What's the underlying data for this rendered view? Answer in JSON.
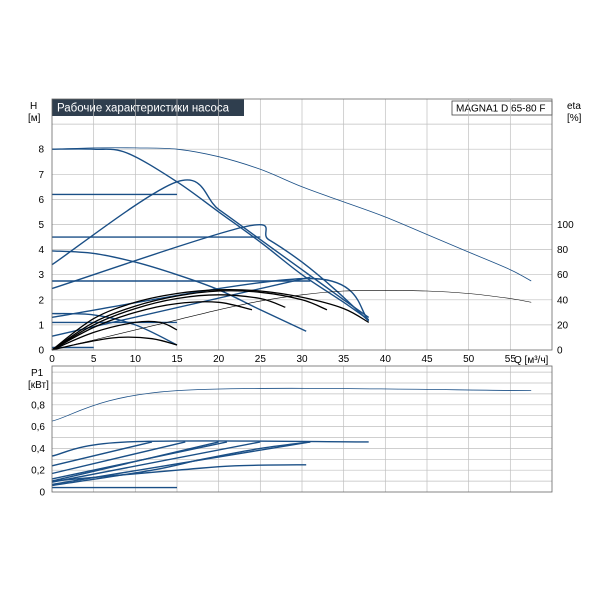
{
  "title": "Рабочие характеристики насоса",
  "model": "MAGNA1 D 65-80 F",
  "colors": {
    "title_bg": "#2f3e4e",
    "title_fg": "#ffffff",
    "grid": "#bfbfbf",
    "curve": "#1a4f86",
    "eff": "#000000"
  },
  "labels": {
    "h_axis": "H",
    "h_unit": "[м]",
    "eta_axis": "eta",
    "eta_unit": "[%]",
    "q_axis": "Q [м³/ч]",
    "p_axis": "P1",
    "p_unit": "[кВт]"
  },
  "chart_data": [
    {
      "type": "line",
      "name": "head",
      "xlim": [
        0,
        60
      ],
      "ylim": [
        0,
        9
      ],
      "x_ticks": [
        0,
        5,
        10,
        15,
        20,
        25,
        30,
        35,
        40,
        45,
        50,
        55
      ],
      "y_ticks": [
        0,
        1,
        2,
        3,
        4,
        5,
        6,
        7,
        8
      ],
      "right_ticks": [
        0,
        20,
        40,
        60,
        80,
        100
      ],
      "right_range": [
        0,
        100
      ],
      "grid": true,
      "series": [
        {
          "style": "main",
          "points": [
            [
              0,
              8.0
            ],
            [
              5,
              8.05
            ],
            [
              10,
              8.05
            ],
            [
              15,
              8.0
            ],
            [
              20,
              7.7
            ],
            [
              25,
              7.2
            ],
            [
              30,
              6.5
            ],
            [
              35,
              5.9
            ],
            [
              40,
              5.3
            ],
            [
              45,
              4.6
            ],
            [
              50,
              3.9
            ],
            [
              55,
              3.2
            ],
            [
              57.5,
              2.75
            ]
          ]
        },
        {
          "style": "curve",
          "points": [
            [
              0,
              8.0
            ],
            [
              5,
              8.0
            ],
            [
              9,
              7.85
            ],
            [
              15,
              6.7
            ],
            [
              20,
              5.5
            ],
            [
              25,
              4.3
            ],
            [
              30,
              3.0
            ],
            [
              35,
              1.9
            ],
            [
              38,
              1.2
            ]
          ]
        },
        {
          "style": "curve",
          "points": [
            [
              0,
              6.2
            ],
            [
              15,
              6.2
            ]
          ]
        },
        {
          "style": "curve",
          "points": [
            [
              0,
              4.5
            ],
            [
              25,
              4.5
            ]
          ]
        },
        {
          "style": "curve",
          "points": [
            [
              0,
              3.95
            ],
            [
              5,
              3.85
            ],
            [
              10,
              3.5
            ],
            [
              15,
              3.0
            ],
            [
              20,
              2.4
            ],
            [
              25,
              1.6
            ],
            [
              30.5,
              0.75
            ]
          ]
        },
        {
          "style": "curve",
          "points": [
            [
              0,
              2.75
            ],
            [
              31,
              2.75
            ]
          ]
        },
        {
          "style": "curve",
          "points": [
            [
              0,
              1.45
            ],
            [
              5,
              1.4
            ],
            [
              10,
              1.0
            ],
            [
              15,
              0.2
            ]
          ]
        },
        {
          "style": "curve",
          "points": [
            [
              0,
              1.1
            ],
            [
              15,
              1.1
            ]
          ]
        },
        {
          "style": "curve",
          "points": [
            [
              0,
              3.4
            ],
            [
              15,
              6.7
            ],
            [
              20,
              5.6
            ],
            [
              25,
              4.4
            ],
            [
              30,
              3.2
            ],
            [
              35,
              2.0
            ],
            [
              38,
              1.3
            ]
          ]
        },
        {
          "style": "curve",
          "points": [
            [
              0,
              2.45
            ],
            [
              23,
              4.9
            ],
            [
              26,
              4.4
            ],
            [
              30,
              3.5
            ],
            [
              34,
              2.4
            ],
            [
              38,
              1.15
            ]
          ]
        },
        {
          "style": "curve",
          "points": [
            [
              0,
              1.3
            ],
            [
              31,
              2.85
            ],
            [
              38,
              1.2
            ]
          ]
        },
        {
          "style": "curve",
          "points": [
            [
              0,
              0.55
            ],
            [
              31,
              2.9
            ]
          ]
        },
        {
          "style": "curve",
          "points": [
            [
              0,
              0.1
            ],
            [
              5,
              0.1
            ]
          ]
        }
      ],
      "efficiency": [
        {
          "style": "eff-thin",
          "points": [
            [
              0,
              0
            ],
            [
              5,
              8
            ],
            [
              10,
              16
            ],
            [
              15,
              24
            ],
            [
              20,
              32
            ],
            [
              25,
              39
            ],
            [
              30,
              44
            ],
            [
              35,
              47
            ],
            [
              40,
              47.5
            ],
            [
              45,
              47
            ],
            [
              50,
              45
            ],
            [
              55,
              41
            ],
            [
              57.5,
              38
            ]
          ]
        },
        {
          "style": "eff",
          "points": [
            [
              0,
              0
            ],
            [
              5,
              25
            ],
            [
              10,
              38
            ],
            [
              15,
              45
            ],
            [
              20,
              48
            ],
            [
              25,
              47
            ],
            [
              30,
              42
            ],
            [
              35,
              33
            ],
            [
              38,
              22
            ]
          ]
        },
        {
          "style": "eff",
          "points": [
            [
              0,
              0
            ],
            [
              5,
              22
            ],
            [
              10,
              35
            ],
            [
              15,
              43
            ],
            [
              20,
              47
            ],
            [
              25,
              46
            ],
            [
              30,
              40
            ],
            [
              33,
              32
            ]
          ]
        },
        {
          "style": "eff",
          "points": [
            [
              0,
              0
            ],
            [
              5,
              20
            ],
            [
              10,
              33
            ],
            [
              15,
              41
            ],
            [
              20,
              44
            ],
            [
              25,
              41
            ],
            [
              28,
              34
            ]
          ]
        },
        {
          "style": "eff",
          "points": [
            [
              0,
              0
            ],
            [
              5,
              18
            ],
            [
              10,
              30
            ],
            [
              15,
              37
            ],
            [
              20,
              38
            ],
            [
              24,
              32
            ]
          ]
        },
        {
          "style": "eff",
          "points": [
            [
              0,
              0
            ],
            [
              5,
              14
            ],
            [
              10,
              22
            ],
            [
              13,
              22
            ],
            [
              15,
              16
            ]
          ]
        },
        {
          "style": "eff",
          "points": [
            [
              0,
              0
            ],
            [
              4,
              6
            ],
            [
              8,
              10
            ],
            [
              12,
              9
            ],
            [
              15,
              4
            ]
          ]
        }
      ]
    },
    {
      "type": "line",
      "name": "power",
      "xlim": [
        0,
        60
      ],
      "ylim": [
        0,
        1.0
      ],
      "y_ticks": [
        0,
        0.2,
        0.4,
        0.6,
        0.8
      ],
      "y_tick_labels": [
        "0",
        "0,2",
        "0,4",
        "0,6",
        "0,8"
      ],
      "grid": true,
      "series": [
        {
          "style": "main",
          "points": [
            [
              0,
              0.65
            ],
            [
              15,
              0.93
            ],
            [
              57.5,
              0.93
            ]
          ]
        },
        {
          "style": "curve",
          "points": [
            [
              0,
              0.33
            ],
            [
              9,
              0.46
            ],
            [
              38,
              0.46
            ]
          ]
        },
        {
          "style": "curve",
          "points": [
            [
              0,
              0.24
            ],
            [
              12,
              0.46
            ]
          ]
        },
        {
          "style": "curve",
          "points": [
            [
              0,
              0.17
            ],
            [
              16,
              0.46
            ]
          ]
        },
        {
          "style": "curve",
          "points": [
            [
              0,
              0.12
            ],
            [
              21,
              0.46
            ]
          ]
        },
        {
          "style": "curve",
          "points": [
            [
              0,
              0.09
            ],
            [
              25,
              0.46
            ]
          ]
        },
        {
          "style": "curve",
          "points": [
            [
              0,
              0.07
            ],
            [
              31,
              0.46
            ]
          ]
        },
        {
          "style": "curve",
          "points": [
            [
              0,
              0.1
            ],
            [
              15,
              0.2
            ],
            [
              22,
              0.24
            ],
            [
              30.5,
              0.25
            ]
          ]
        },
        {
          "style": "curve",
          "points": [
            [
              0,
              0.04
            ],
            [
              15,
              0.04
            ]
          ]
        },
        {
          "style": "curve",
          "points": [
            [
              0,
              0.1
            ],
            [
              20,
              0.46
            ]
          ]
        },
        {
          "style": "curve",
          "points": [
            [
              0,
              0.06
            ],
            [
              12,
              0.2
            ],
            [
              18,
              0.3
            ],
            [
              25,
              0.4
            ],
            [
              31,
              0.46
            ]
          ]
        }
      ]
    }
  ]
}
